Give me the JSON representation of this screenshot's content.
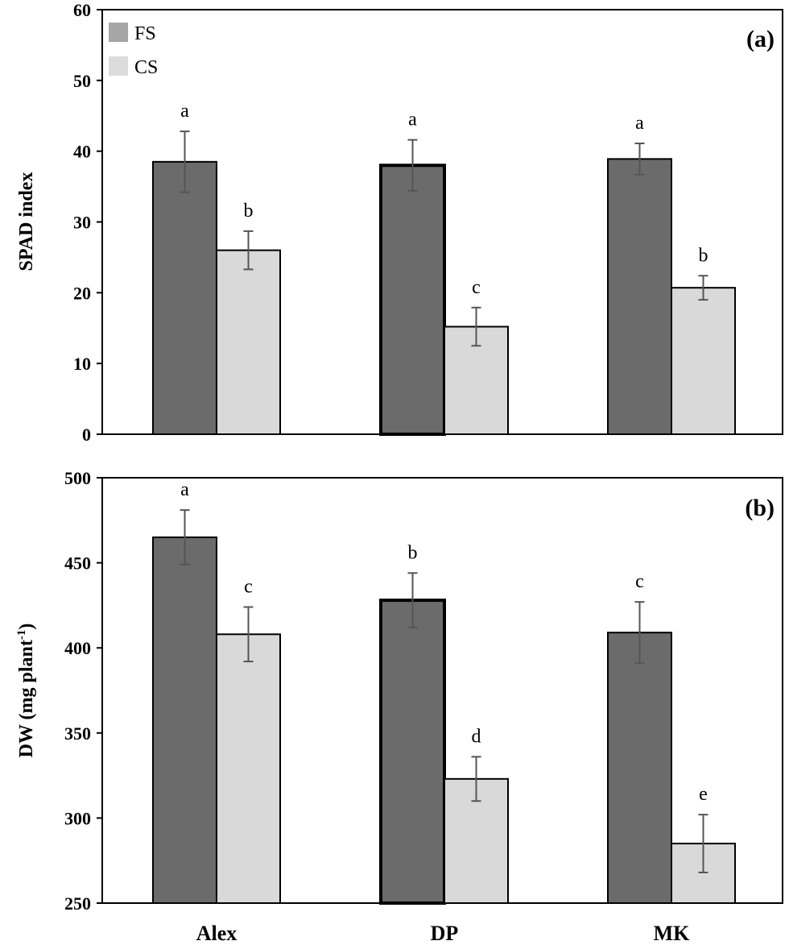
{
  "chart_data": [
    {
      "type": "bar",
      "panel_label": "(a)",
      "ylabel": "SPAD index",
      "ylim": [
        0,
        60
      ],
      "yticks": [
        "0",
        "10",
        "20",
        "30",
        "40",
        "50",
        "60"
      ],
      "ytick_values": [
        0,
        10,
        20,
        30,
        40,
        50,
        60
      ],
      "categories": [
        "Alex",
        "DP",
        "MK"
      ],
      "show_xtick_labels": false,
      "legend": {
        "placement": "top-left",
        "entries": [
          "FS",
          "CS"
        ]
      },
      "series": [
        {
          "name": "FS",
          "color": "#6b6b6b",
          "values": [
            38.5,
            38.0,
            38.9
          ],
          "errors": [
            4.3,
            3.6,
            2.2
          ],
          "letters": [
            "a",
            "a",
            "a"
          ]
        },
        {
          "name": "CS",
          "color": "#d9d9d9",
          "values": [
            26.0,
            15.2,
            20.7
          ],
          "errors": [
            2.7,
            2.7,
            1.7
          ],
          "letters": [
            "b",
            "c",
            "b"
          ]
        }
      ]
    },
    {
      "type": "bar",
      "panel_label": "(b)",
      "ylabel": "DW (mg plant",
      "ylabel_superscript": "-1",
      "ylabel_suffix": ")",
      "ylim": [
        250,
        500
      ],
      "yticks": [
        "250",
        "300",
        "350",
        "400",
        "450",
        "500"
      ],
      "ytick_values": [
        250,
        300,
        350,
        400,
        450,
        500
      ],
      "categories": [
        "Alex",
        "DP",
        "MK"
      ],
      "show_xtick_labels": true,
      "series": [
        {
          "name": "FS",
          "color": "#6b6b6b",
          "values": [
            465,
            428,
            409
          ],
          "errors": [
            16,
            16,
            18
          ],
          "letters": [
            "a",
            "b",
            "c"
          ]
        },
        {
          "name": "CS",
          "color": "#d9d9d9",
          "values": [
            408,
            323,
            285
          ],
          "errors": [
            16,
            13,
            17
          ],
          "letters": [
            "c",
            "d",
            "e"
          ]
        }
      ]
    }
  ]
}
